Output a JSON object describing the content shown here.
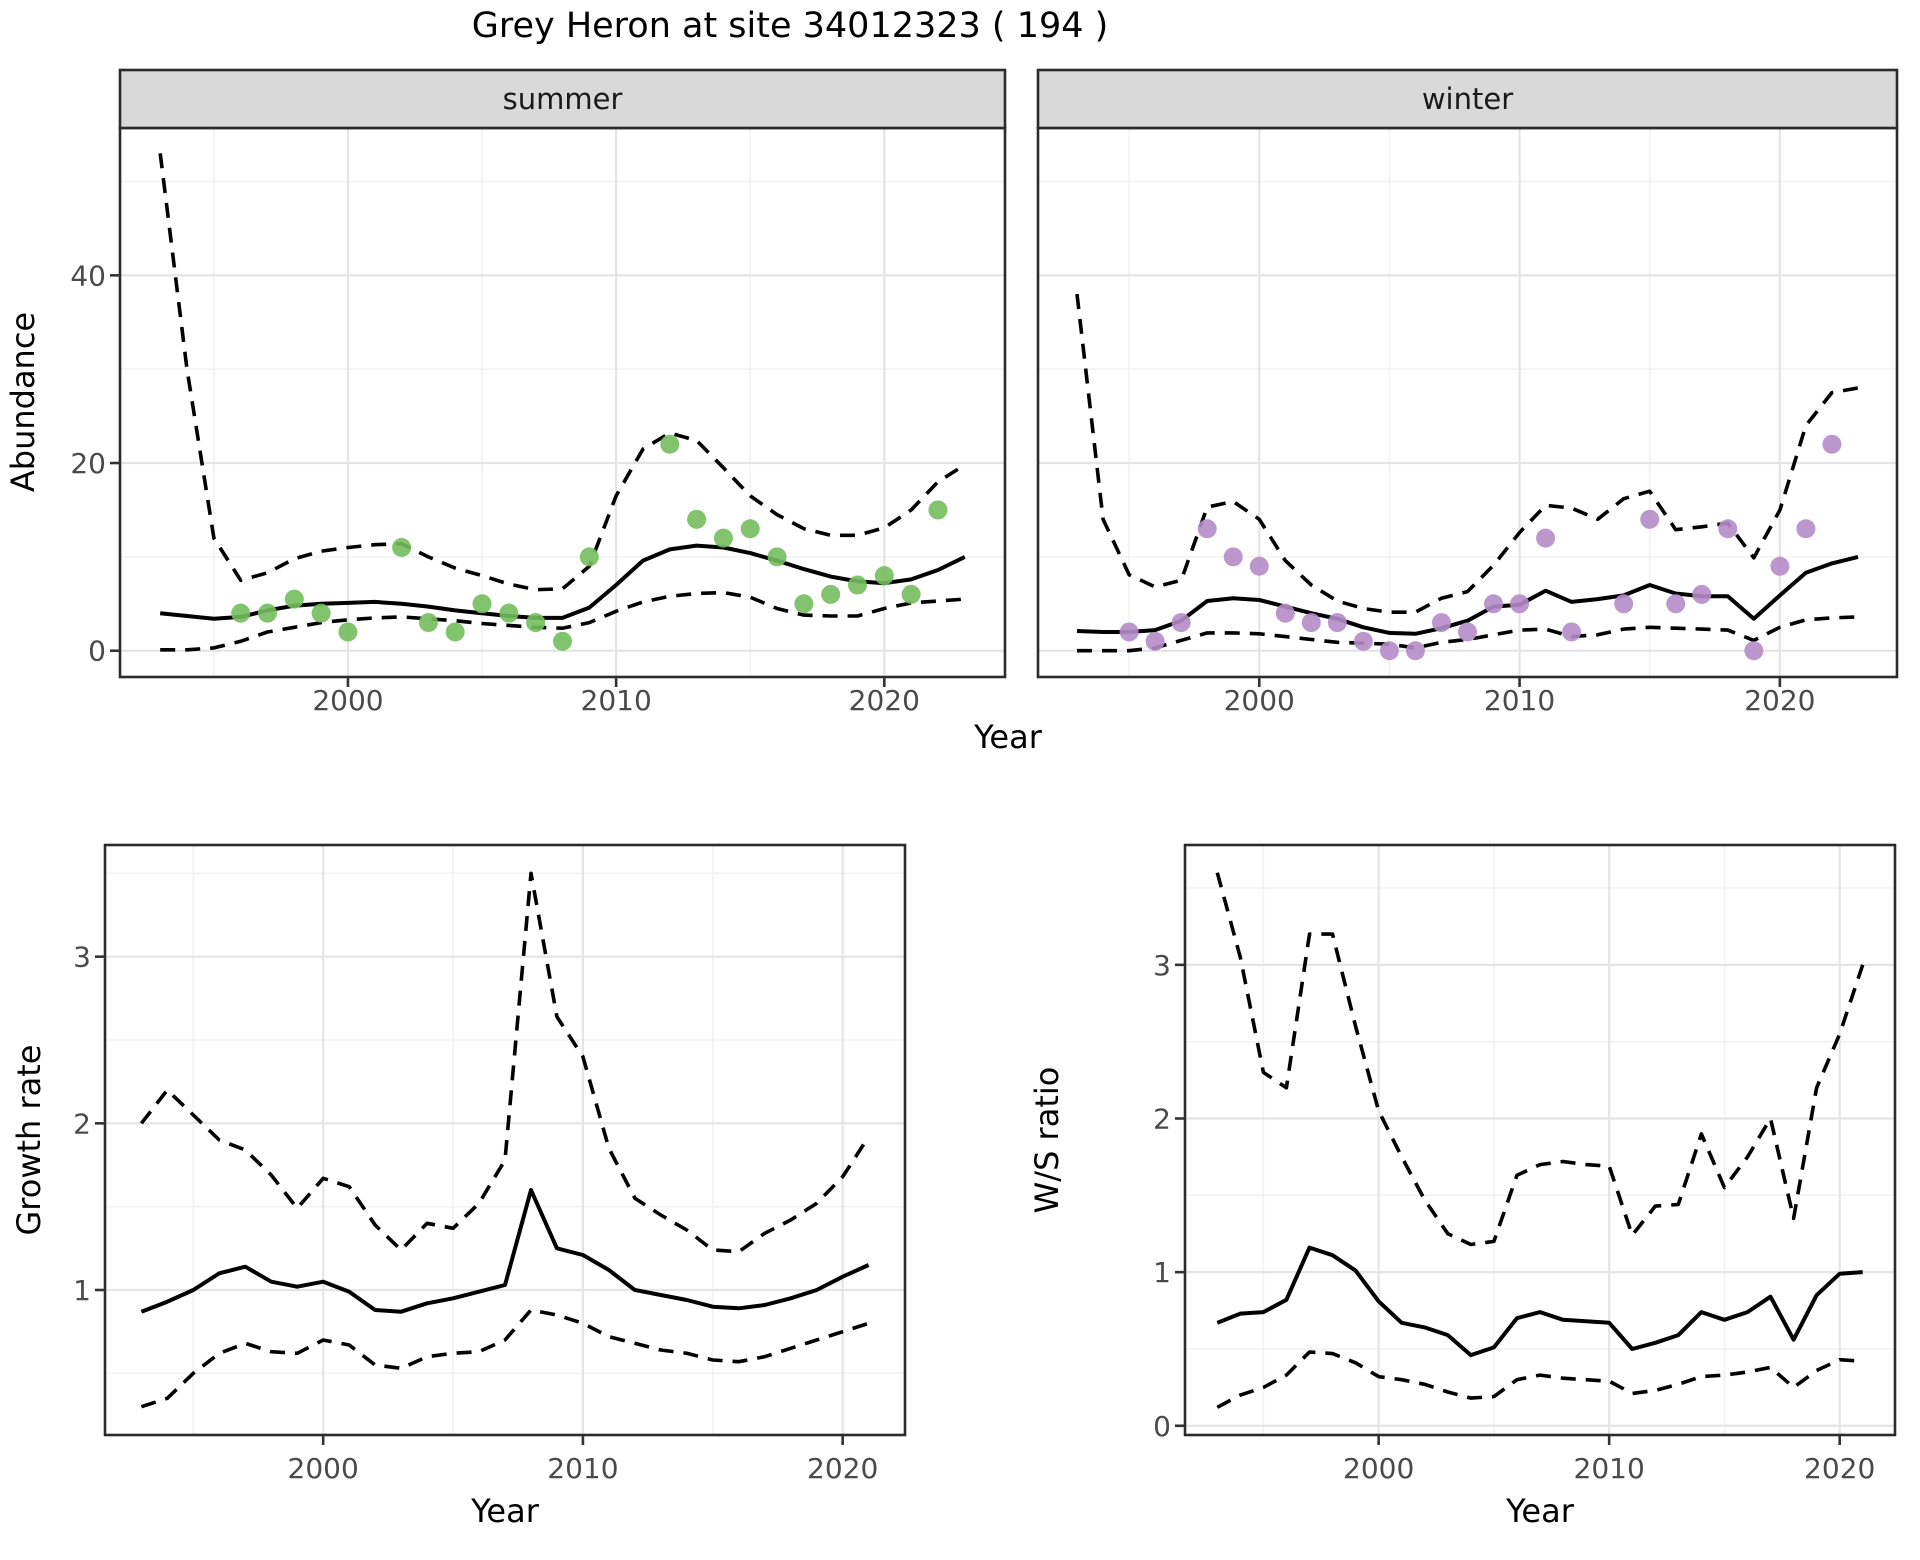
{
  "title": "Grey Heron at site 34012323 ( 194 )",
  "colors": {
    "summer_point": "#74bd5d",
    "winter_point": "#b48cc8",
    "line": "#000000",
    "strip_bg": "#d9d9d9",
    "strip_border": "#2b2b2b",
    "panel_border": "#2b2b2b",
    "grid_major": "#e4e4e4",
    "grid_minor": "#f2f2f2",
    "tick_text": "#4a4a4a",
    "axis_text": "#000000"
  },
  "top_plot": {
    "ylabel": "Abundance",
    "xlabel": "Year",
    "facet_labels": [
      "summer",
      "winter"
    ]
  },
  "bottom_left_plot": {
    "ylabel": "Growth rate",
    "xlabel": "Year"
  },
  "bottom_right_plot": {
    "ylabel": "W/S ratio",
    "xlabel": "Year"
  },
  "chart_data": [
    {
      "id": "abundance-summer",
      "type": "scatter",
      "facet_label": "summer",
      "xlabel": "Year",
      "ylabel": "Abundance",
      "xlim": [
        1991.5,
        2024.5
      ],
      "ylim": [
        -2.8,
        55.7
      ],
      "x_ticks": [
        2000,
        2010,
        2020
      ],
      "y_ticks": [
        0,
        20,
        40
      ],
      "x_minor": [
        1995,
        2005,
        2015
      ],
      "y_minor": [
        10,
        30,
        50
      ],
      "show_y_labels": true,
      "point_color_key": "summer_point",
      "points": {
        "years": [
          1996,
          1997,
          1998,
          1999,
          2000,
          2002,
          2003,
          2004,
          2005,
          2006,
          2007,
          2008,
          2009,
          2012,
          2013,
          2014,
          2015,
          2016,
          2017,
          2018,
          2019,
          2020,
          2021,
          2022
        ],
        "values": [
          4,
          4,
          5.5,
          4,
          2,
          11,
          3,
          2,
          5,
          4,
          3,
          1,
          10,
          22,
          14,
          12,
          13,
          10,
          5,
          6,
          7,
          8,
          6,
          15
        ]
      },
      "series": [
        {
          "name": "trend",
          "style": "solid",
          "x": [
            1993,
            1994,
            1995,
            1996,
            1997,
            1998,
            1999,
            2000,
            2001,
            2002,
            2003,
            2004,
            2005,
            2006,
            2007,
            2008,
            2009,
            2010,
            2011,
            2012,
            2013,
            2014,
            2015,
            2016,
            2017,
            2018,
            2019,
            2020,
            2021,
            2022,
            2023
          ],
          "y": [
            4.0,
            3.7,
            3.4,
            3.6,
            4.3,
            4.8,
            5.0,
            5.1,
            5.2,
            5.0,
            4.7,
            4.3,
            4.0,
            3.7,
            3.5,
            3.5,
            4.6,
            7.0,
            9.6,
            10.8,
            11.2,
            11.0,
            10.4,
            9.6,
            8.7,
            7.9,
            7.4,
            7.2,
            7.6,
            8.6,
            10.0
          ]
        },
        {
          "name": "upper_ci",
          "style": "dashed",
          "x": [
            1993,
            1994,
            1995,
            1996,
            1997,
            1998,
            1999,
            2000,
            2001,
            2002,
            2003,
            2004,
            2005,
            2006,
            2007,
            2008,
            2009,
            2010,
            2011,
            2012,
            2013,
            2014,
            2015,
            2016,
            2017,
            2018,
            2019,
            2020,
            2021,
            2022,
            2023
          ],
          "y": [
            53,
            30,
            12,
            7.5,
            8.3,
            9.8,
            10.6,
            11.0,
            11.3,
            11.4,
            10.0,
            8.8,
            8.0,
            7.1,
            6.5,
            6.6,
            9.0,
            16.5,
            21.5,
            23.2,
            22.4,
            19.5,
            16.5,
            14.5,
            13.0,
            12.3,
            12.3,
            13.1,
            15.0,
            18.0,
            19.8
          ]
        },
        {
          "name": "lower_ci",
          "style": "dashed",
          "x": [
            1993,
            1994,
            1995,
            1996,
            1997,
            1998,
            1999,
            2000,
            2001,
            2002,
            2003,
            2004,
            2005,
            2006,
            2007,
            2008,
            2009,
            2010,
            2011,
            2012,
            2013,
            2014,
            2015,
            2016,
            2017,
            2018,
            2019,
            2020,
            2021,
            2022,
            2023
          ],
          "y": [
            0.1,
            0.1,
            0.3,
            1.0,
            2.0,
            2.5,
            3.0,
            3.3,
            3.5,
            3.6,
            3.4,
            3.2,
            2.9,
            2.7,
            2.5,
            2.4,
            3.0,
            4.2,
            5.2,
            5.8,
            6.1,
            6.2,
            5.7,
            4.5,
            3.8,
            3.7,
            3.7,
            4.5,
            5.1,
            5.3,
            5.5
          ]
        }
      ]
    },
    {
      "id": "abundance-winter",
      "type": "scatter",
      "facet_label": "winter",
      "xlabel": "Year",
      "ylabel": "Abundance",
      "xlim": [
        1991.5,
        2024.5
      ],
      "ylim": [
        -2.8,
        55.7
      ],
      "x_ticks": [
        2000,
        2010,
        2020
      ],
      "y_ticks": [
        0,
        20,
        40
      ],
      "x_minor": [
        1995,
        2005,
        2015
      ],
      "y_minor": [
        10,
        30,
        50
      ],
      "show_y_labels": false,
      "point_color_key": "winter_point",
      "points": {
        "years": [
          1995,
          1996,
          1997,
          1998,
          1999,
          2000,
          2001,
          2002,
          2003,
          2004,
          2005,
          2006,
          2007,
          2008,
          2009,
          2010,
          2011,
          2012,
          2014,
          2015,
          2016,
          2017,
          2018,
          2019,
          2020,
          2021,
          2022
        ],
        "values": [
          2,
          1,
          3,
          13,
          10,
          9,
          4,
          3,
          3,
          1,
          0,
          0,
          3,
          2,
          5,
          5,
          12,
          2,
          5,
          14,
          5,
          6,
          13,
          0,
          9,
          13,
          22
        ]
      },
      "series": [
        {
          "name": "trend",
          "style": "solid",
          "x": [
            1993,
            1994,
            1995,
            1996,
            1997,
            1998,
            1999,
            2000,
            2001,
            2002,
            2003,
            2004,
            2005,
            2006,
            2007,
            2008,
            2009,
            2010,
            2011,
            2012,
            2013,
            2014,
            2015,
            2016,
            2017,
            2018,
            2019,
            2020,
            2021,
            2022,
            2023
          ],
          "y": [
            2.1,
            2.0,
            2.0,
            2.2,
            3.2,
            5.3,
            5.6,
            5.4,
            4.7,
            4.0,
            3.4,
            2.5,
            1.9,
            1.8,
            2.4,
            3.2,
            4.7,
            4.9,
            6.4,
            5.2,
            5.5,
            5.9,
            7.0,
            6.1,
            5.8,
            5.8,
            3.4,
            5.9,
            8.3,
            9.3,
            10.0
          ]
        },
        {
          "name": "upper_ci",
          "style": "dashed",
          "x": [
            1993,
            1994,
            1995,
            1996,
            1997,
            1998,
            1999,
            2000,
            2001,
            2002,
            2003,
            2004,
            2005,
            2006,
            2007,
            2008,
            2009,
            2010,
            2011,
            2012,
            2013,
            2014,
            2015,
            2016,
            2017,
            2018,
            2019,
            2020,
            2021,
            2022,
            2023
          ],
          "y": [
            38,
            14,
            8.1,
            6.8,
            7.5,
            15.3,
            15.9,
            14.0,
            9.6,
            7.0,
            5.3,
            4.5,
            4.1,
            4.1,
            5.6,
            6.3,
            9.1,
            12.6,
            15.5,
            15.2,
            14.0,
            16.2,
            17.0,
            12.9,
            13.2,
            13.6,
            9.9,
            15.0,
            24.0,
            27.5,
            28.0
          ]
        },
        {
          "name": "lower_ci",
          "style": "dashed",
          "x": [
            1993,
            1994,
            1995,
            1996,
            1997,
            1998,
            1999,
            2000,
            2001,
            2002,
            2003,
            2004,
            2005,
            2006,
            2007,
            2008,
            2009,
            2010,
            2011,
            2012,
            2013,
            2014,
            2015,
            2016,
            2017,
            2018,
            2019,
            2020,
            2021,
            2022,
            2023
          ],
          "y": [
            0,
            0,
            0,
            0.3,
            1.1,
            1.9,
            1.9,
            1.8,
            1.5,
            1.2,
            0.9,
            0.8,
            0.7,
            0.3,
            0.9,
            1.2,
            1.7,
            2.2,
            2.3,
            1.5,
            1.7,
            2.3,
            2.5,
            2.4,
            2.3,
            2.2,
            1.1,
            2.5,
            3.3,
            3.5,
            3.6
          ]
        }
      ]
    },
    {
      "id": "growth-rate",
      "type": "line",
      "facet_label": null,
      "xlabel": "Year",
      "ylabel": "Growth rate",
      "xlim": [
        1991.6,
        2022.4
      ],
      "ylim": [
        0.13,
        3.67
      ],
      "x_ticks": [
        2000,
        2010,
        2020
      ],
      "y_ticks": [
        1,
        2,
        3
      ],
      "x_minor": [
        1995,
        2005,
        2015
      ],
      "y_minor": [
        0.5,
        1.5,
        2.5,
        3.5
      ],
      "show_y_labels": true,
      "series": [
        {
          "name": "trend",
          "style": "solid",
          "x": [
            1993,
            1994,
            1995,
            1996,
            1997,
            1998,
            1999,
            2000,
            2001,
            2002,
            2003,
            2004,
            2005,
            2006,
            2007,
            2008,
            2009,
            2010,
            2011,
            2012,
            2013,
            2014,
            2015,
            2016,
            2017,
            2018,
            2019,
            2020,
            2021
          ],
          "y": [
            0.87,
            0.93,
            1.0,
            1.1,
            1.14,
            1.05,
            1.02,
            1.05,
            0.99,
            0.88,
            0.87,
            0.92,
            0.95,
            0.99,
            1.03,
            1.6,
            1.25,
            1.21,
            1.12,
            1.0,
            0.97,
            0.94,
            0.9,
            0.89,
            0.91,
            0.95,
            1.0,
            1.08,
            1.15
          ]
        },
        {
          "name": "upper_ci",
          "style": "dashed",
          "x": [
            1993,
            1994,
            1995,
            1996,
            1997,
            1998,
            1999,
            2000,
            2001,
            2002,
            2003,
            2004,
            2005,
            2006,
            2007,
            2008,
            2009,
            2010,
            2011,
            2012,
            2013,
            2014,
            2015,
            2016,
            2017,
            2018,
            2019,
            2020,
            2021
          ],
          "y": [
            2.0,
            2.2,
            2.05,
            1.9,
            1.84,
            1.69,
            1.49,
            1.67,
            1.62,
            1.39,
            1.24,
            1.4,
            1.37,
            1.52,
            1.78,
            3.5,
            2.64,
            2.4,
            1.85,
            1.55,
            1.45,
            1.36,
            1.24,
            1.23,
            1.34,
            1.42,
            1.52,
            1.68,
            1.92
          ]
        },
        {
          "name": "lower_ci",
          "style": "dashed",
          "x": [
            1993,
            1994,
            1995,
            1996,
            1997,
            1998,
            1999,
            2000,
            2001,
            2002,
            2003,
            2004,
            2005,
            2006,
            2007,
            2008,
            2009,
            2010,
            2011,
            2012,
            2013,
            2014,
            2015,
            2016,
            2017,
            2018,
            2019,
            2020,
            2021
          ],
          "y": [
            0.3,
            0.35,
            0.5,
            0.62,
            0.68,
            0.63,
            0.62,
            0.7,
            0.67,
            0.55,
            0.53,
            0.6,
            0.62,
            0.63,
            0.7,
            0.88,
            0.85,
            0.8,
            0.72,
            0.68,
            0.64,
            0.62,
            0.58,
            0.57,
            0.6,
            0.65,
            0.7,
            0.75,
            0.8
          ]
        }
      ]
    },
    {
      "id": "ws-ratio",
      "type": "line",
      "facet_label": null,
      "xlabel": "Year",
      "ylabel": "W/S ratio",
      "xlim": [
        1991.6,
        2022.4
      ],
      "ylim": [
        -0.06,
        3.78
      ],
      "x_ticks": [
        2000,
        2010,
        2020
      ],
      "y_ticks": [
        0,
        1,
        2,
        3
      ],
      "x_minor": [
        1995,
        2005,
        2015
      ],
      "y_minor": [
        0.5,
        1.5,
        2.5,
        3.5
      ],
      "show_y_labels": true,
      "series": [
        {
          "name": "trend",
          "style": "solid",
          "x": [
            1993,
            1994,
            1995,
            1996,
            1997,
            1998,
            1999,
            2000,
            2001,
            2002,
            2003,
            2004,
            2005,
            2006,
            2007,
            2008,
            2009,
            2010,
            2011,
            2012,
            2013,
            2014,
            2015,
            2016,
            2017,
            2018,
            2019,
            2020,
            2021
          ],
          "y": [
            0.67,
            0.73,
            0.74,
            0.82,
            1.16,
            1.11,
            1.01,
            0.81,
            0.67,
            0.64,
            0.59,
            0.46,
            0.51,
            0.7,
            0.74,
            0.69,
            0.68,
            0.67,
            0.5,
            0.54,
            0.59,
            0.74,
            0.69,
            0.74,
            0.84,
            0.56,
            0.85,
            0.99,
            1.0
          ]
        },
        {
          "name": "upper_ci",
          "style": "dashed",
          "x": [
            1993,
            1994,
            1995,
            1996,
            1997,
            1998,
            1999,
            2000,
            2001,
            2002,
            2003,
            2004,
            2005,
            2006,
            2007,
            2008,
            2009,
            2010,
            2011,
            2012,
            2013,
            2014,
            2015,
            2016,
            2017,
            2018,
            2019,
            2020,
            2021
          ],
          "y": [
            3.6,
            3.05,
            2.3,
            2.2,
            3.2,
            3.2,
            2.6,
            2.05,
            1.75,
            1.47,
            1.25,
            1.18,
            1.2,
            1.63,
            1.7,
            1.72,
            1.7,
            1.69,
            1.24,
            1.43,
            1.44,
            1.9,
            1.55,
            1.75,
            2.0,
            1.35,
            2.2,
            2.55,
            3.0
          ]
        },
        {
          "name": "lower_ci",
          "style": "dashed",
          "x": [
            1993,
            1994,
            1995,
            1996,
            1997,
            1998,
            1999,
            2000,
            2001,
            2002,
            2003,
            2004,
            2005,
            2006,
            2007,
            2008,
            2009,
            2010,
            2011,
            2012,
            2013,
            2014,
            2015,
            2016,
            2017,
            2018,
            2019,
            2020,
            2021
          ],
          "y": [
            0.12,
            0.2,
            0.25,
            0.33,
            0.48,
            0.47,
            0.41,
            0.32,
            0.3,
            0.27,
            0.22,
            0.18,
            0.19,
            0.3,
            0.33,
            0.31,
            0.3,
            0.29,
            0.21,
            0.23,
            0.27,
            0.32,
            0.33,
            0.35,
            0.38,
            0.25,
            0.36,
            0.43,
            0.42
          ]
        }
      ]
    }
  ]
}
